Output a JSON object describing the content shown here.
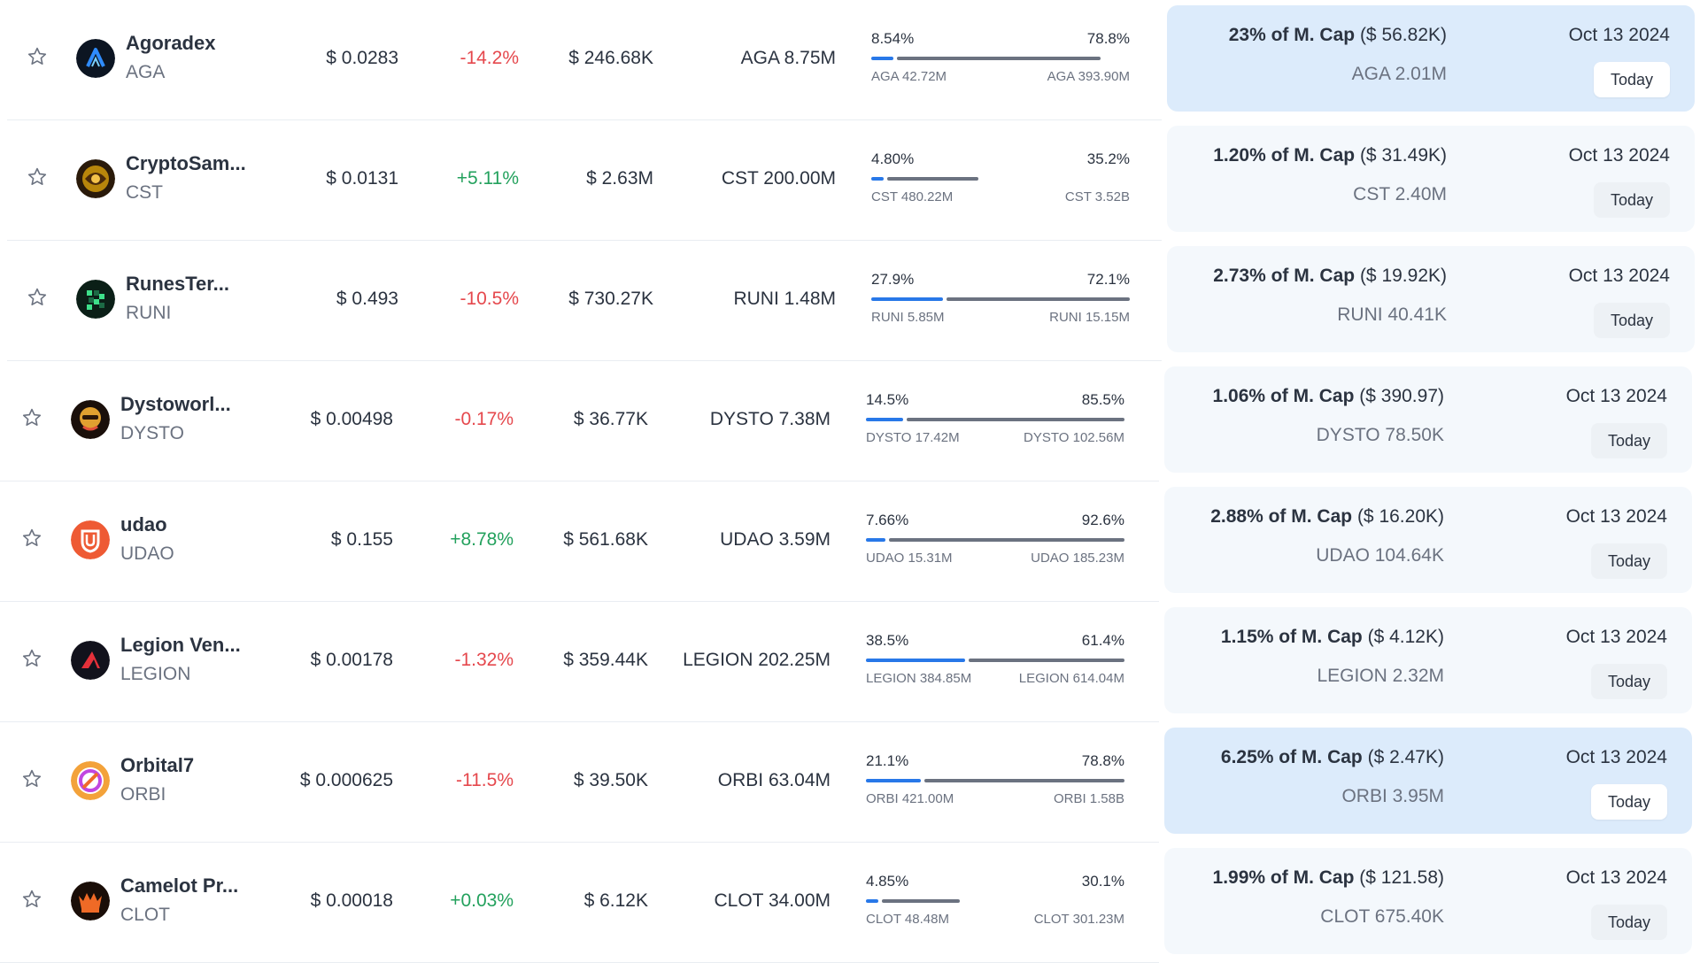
{
  "colors": {
    "positive": "#23a15d",
    "negative": "#e5484d",
    "progress_unlocked": "#2878e8",
    "progress_locked": "#6b7280",
    "highlight_panel": "#dcebfb",
    "panel": "#f4f8fc"
  },
  "rows": [
    {
      "name": "Agoradex",
      "symbol": "AGA",
      "logo_icon": "agoradex-logo-icon",
      "price": "$ 0.0283",
      "change": "-14.2%",
      "change_dir": "neg",
      "market_cap": "$ 246.68K",
      "circulating": "AGA 8.75M",
      "unlocked_pct": "8.54%",
      "locked_pct": "78.8%",
      "unlocked_fraction": 0.0854,
      "locked_fraction": 0.788,
      "unlocked_amount": "AGA 42.72M",
      "locked_amount": "AGA 393.90M",
      "next_unlock_share": "23% of M. Cap",
      "next_unlock_value": "($ 56.82K)",
      "next_unlock_amount": "AGA 2.01M",
      "next_unlock_date": "Oct 13 2024",
      "next_unlock_badge": "Today",
      "highlighted": true
    },
    {
      "name": "CryptoSam...",
      "symbol": "CST",
      "logo_icon": "cryptosamurai-logo-icon",
      "price": "$ 0.0131",
      "change": "+5.11%",
      "change_dir": "pos",
      "market_cap": "$ 2.63M",
      "circulating": "CST 200.00M",
      "unlocked_pct": "4.80%",
      "locked_pct": "35.2%",
      "unlocked_fraction": 0.048,
      "locked_fraction": 0.352,
      "unlocked_amount": "CST 480.22M",
      "locked_amount": "CST 3.52B",
      "next_unlock_share": "1.20% of M. Cap",
      "next_unlock_value": "($ 31.49K)",
      "next_unlock_amount": "CST 2.40M",
      "next_unlock_date": "Oct 13 2024",
      "next_unlock_badge": "Today",
      "highlighted": false
    },
    {
      "name": "RunesTer...",
      "symbol": "RUNI",
      "logo_icon": "runesterminal-logo-icon",
      "price": "$ 0.493",
      "change": "-10.5%",
      "change_dir": "neg",
      "market_cap": "$ 730.27K",
      "circulating": "RUNI 1.48M",
      "unlocked_pct": "27.9%",
      "locked_pct": "72.1%",
      "unlocked_fraction": 0.279,
      "locked_fraction": 0.721,
      "unlocked_amount": "RUNI 5.85M",
      "locked_amount": "RUNI 15.15M",
      "next_unlock_share": "2.73% of M. Cap",
      "next_unlock_value": "($ 19.92K)",
      "next_unlock_amount": "RUNI 40.41K",
      "next_unlock_date": "Oct 13 2024",
      "next_unlock_badge": "Today",
      "highlighted": false
    },
    {
      "name": "Dystoworl...",
      "symbol": "DYSTO",
      "logo_icon": "dystoworld-logo-icon",
      "price": "$ 0.00498",
      "change": "-0.17%",
      "change_dir": "neg",
      "market_cap": "$ 36.77K",
      "circulating": "DYSTO 7.38M",
      "unlocked_pct": "14.5%",
      "locked_pct": "85.5%",
      "unlocked_fraction": 0.145,
      "locked_fraction": 0.855,
      "unlocked_amount": "DYSTO 17.42M",
      "locked_amount": "DYSTO 102.56M",
      "next_unlock_share": "1.06% of M. Cap",
      "next_unlock_value": "($ 390.97)",
      "next_unlock_amount": "DYSTO 78.50K",
      "next_unlock_date": "Oct 13 2024",
      "next_unlock_badge": "Today",
      "highlighted": false
    },
    {
      "name": "udao",
      "symbol": "UDAO",
      "logo_icon": "udao-logo-icon",
      "price": "$ 0.155",
      "change": "+8.78%",
      "change_dir": "pos",
      "market_cap": "$ 561.68K",
      "circulating": "UDAO 3.59M",
      "unlocked_pct": "7.66%",
      "locked_pct": "92.6%",
      "unlocked_fraction": 0.0766,
      "locked_fraction": 0.926,
      "unlocked_amount": "UDAO 15.31M",
      "locked_amount": "UDAO 185.23M",
      "next_unlock_share": "2.88% of M. Cap",
      "next_unlock_value": "($ 16.20K)",
      "next_unlock_amount": "UDAO 104.64K",
      "next_unlock_date": "Oct 13 2024",
      "next_unlock_badge": "Today",
      "highlighted": false
    },
    {
      "name": "Legion Ven...",
      "symbol": "LEGION",
      "logo_icon": "legion-ventures-logo-icon",
      "price": "$ 0.00178",
      "change": "-1.32%",
      "change_dir": "neg",
      "market_cap": "$ 359.44K",
      "circulating": "LEGION 202.25M",
      "unlocked_pct": "38.5%",
      "locked_pct": "61.4%",
      "unlocked_fraction": 0.385,
      "locked_fraction": 0.614,
      "unlocked_amount": "LEGION 384.85M",
      "locked_amount": "LEGION 614.04M",
      "next_unlock_share": "1.15% of M. Cap",
      "next_unlock_value": "($ 4.12K)",
      "next_unlock_amount": "LEGION 2.32M",
      "next_unlock_date": "Oct 13 2024",
      "next_unlock_badge": "Today",
      "highlighted": false
    },
    {
      "name": "Orbital7",
      "symbol": "ORBI",
      "logo_icon": "orbital7-logo-icon",
      "price": "$ 0.000625",
      "change": "-11.5%",
      "change_dir": "neg",
      "market_cap": "$ 39.50K",
      "circulating": "ORBI 63.04M",
      "unlocked_pct": "21.1%",
      "locked_pct": "78.8%",
      "unlocked_fraction": 0.211,
      "locked_fraction": 0.788,
      "unlocked_amount": "ORBI 421.00M",
      "locked_amount": "ORBI 1.58B",
      "next_unlock_share": "6.25% of M. Cap",
      "next_unlock_value": "($ 2.47K)",
      "next_unlock_amount": "ORBI 3.95M",
      "next_unlock_date": "Oct 13 2024",
      "next_unlock_badge": "Today",
      "highlighted": true
    },
    {
      "name": "Camelot Pr...",
      "symbol": "CLOT",
      "logo_icon": "camelot-protocol-logo-icon",
      "price": "$ 0.00018",
      "change": "+0.03%",
      "change_dir": "pos",
      "market_cap": "$ 6.12K",
      "circulating": "CLOT 34.00M",
      "unlocked_pct": "4.85%",
      "locked_pct": "30.1%",
      "unlocked_fraction": 0.0485,
      "locked_fraction": 0.301,
      "unlocked_amount": "CLOT 48.48M",
      "locked_amount": "CLOT 301.23M",
      "next_unlock_share": "1.99% of M. Cap",
      "next_unlock_value": "($ 121.58)",
      "next_unlock_amount": "CLOT 675.40K",
      "next_unlock_date": "Oct 13 2024",
      "next_unlock_badge": "Today",
      "highlighted": false
    }
  ]
}
